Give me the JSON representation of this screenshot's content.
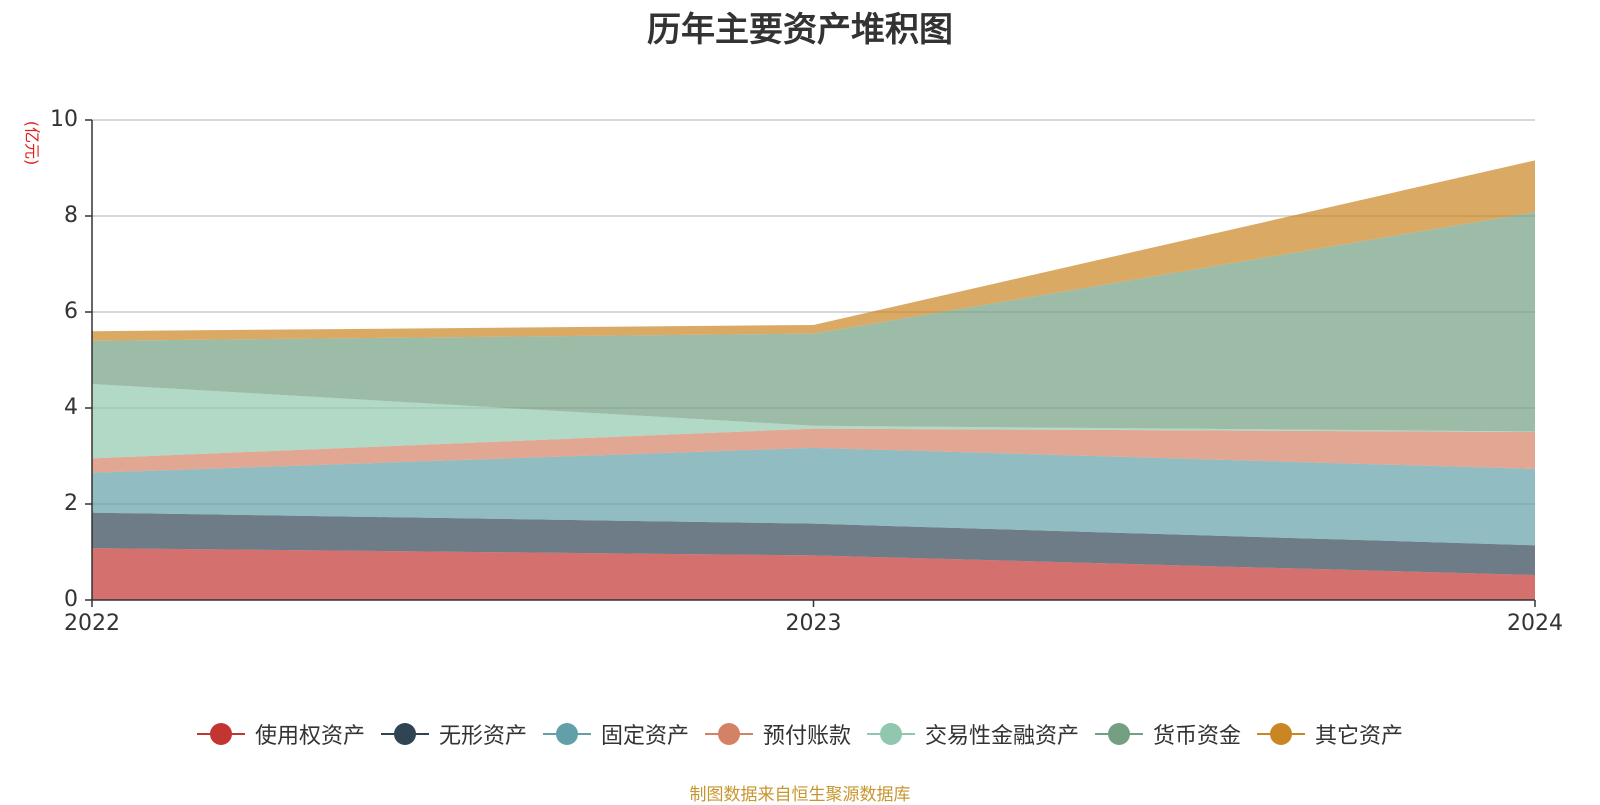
{
  "chart_data": {
    "type": "area",
    "stacked": true,
    "title": "历年主要资产堆积图",
    "ylabel": "(亿元)",
    "x": [
      "2022",
      "2023",
      "2024"
    ],
    "yticks": [
      "0",
      "2",
      "4",
      "6",
      "8",
      "10"
    ],
    "ylim": [
      0,
      10
    ],
    "grid": true,
    "legend_position": "bottom",
    "series": [
      {
        "name": "使用权资产",
        "values": [
          1.08,
          0.93,
          0.52
        ],
        "color": "#c23531"
      },
      {
        "name": "无形资产",
        "values": [
          0.74,
          0.66,
          0.62
        ],
        "color": "#2f4554"
      },
      {
        "name": "固定资产",
        "values": [
          0.83,
          1.58,
          1.59
        ],
        "color": "#61a0a8"
      },
      {
        "name": "预付账款",
        "values": [
          0.3,
          0.4,
          0.77
        ],
        "color": "#d48265"
      },
      {
        "name": "交易性金融资产",
        "values": [
          1.55,
          0.06,
          0.01
        ],
        "color": "#91c7ae"
      },
      {
        "name": "货币资金",
        "values": [
          0.9,
          1.92,
          4.57
        ],
        "color": "#749f83"
      },
      {
        "name": "其它资产",
        "values": [
          0.2,
          0.18,
          1.08
        ],
        "color": "#ca8622"
      }
    ]
  },
  "source_note": "制图数据来自恒生聚源数据库"
}
